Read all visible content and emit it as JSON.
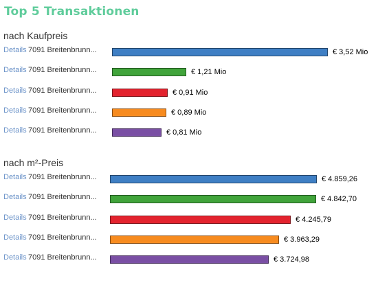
{
  "title": "Top 5 Transaktionen",
  "colors": [
    "#3f7fc4",
    "#41a43b",
    "#e3232e",
    "#f78b1f",
    "#7a4fa4"
  ],
  "chart_data": [
    {
      "type": "bar",
      "orientation": "horizontal",
      "title": "nach Kaufpreis",
      "categories": [
        "7091 Breitenbrunn...",
        "7091 Breitenbrunn...",
        "7091 Breitenbrunn...",
        "7091 Breitenbrunn...",
        "7091 Breitenbrunn..."
      ],
      "link_label": "Details",
      "values": [
        3.52,
        1.21,
        0.91,
        0.89,
        0.81
      ],
      "value_labels": [
        "€ 3,52 Mio",
        "€ 1,21 Mio",
        "€ 0,91 Mio",
        "€ 0,89 Mio",
        "€ 0,81 Mio"
      ],
      "unit": "Mio €",
      "xlim": [
        0,
        3.52
      ]
    },
    {
      "type": "bar",
      "orientation": "horizontal",
      "title": "nach m²-Preis",
      "categories": [
        "7091 Breitenbrunn...",
        "7091 Breitenbrunn...",
        "7091 Breitenbrunn...",
        "7091 Breitenbrunn...",
        "7091 Breitenbrunn..."
      ],
      "link_label": "Details",
      "values": [
        4859.26,
        4842.7,
        4245.79,
        3963.29,
        3724.98
      ],
      "value_labels": [
        "€ 4.859,26",
        "€ 4.842,70",
        "€ 4.245,79",
        "€ 3.963,29",
        "€ 3.724,98"
      ],
      "unit": "€/m²",
      "xlim": [
        0,
        4859.26
      ]
    }
  ]
}
